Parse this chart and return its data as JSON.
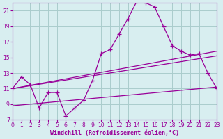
{
  "xlabel": "Windchill (Refroidissement éolien,°C)",
  "bg_color": "#d8eef0",
  "line_color": "#990099",
  "grid_color": "#aacccc",
  "xlim": [
    0,
    23
  ],
  "ylim": [
    7,
    22
  ],
  "xticks": [
    0,
    1,
    2,
    3,
    4,
    5,
    6,
    7,
    8,
    9,
    10,
    11,
    12,
    13,
    14,
    15,
    16,
    17,
    18,
    19,
    20,
    21,
    22,
    23
  ],
  "yticks": [
    7,
    9,
    11,
    13,
    15,
    17,
    19,
    21
  ],
  "main_x": [
    0,
    1,
    2,
    3,
    4,
    5,
    6,
    7,
    8,
    9,
    10,
    11,
    12,
    13,
    14,
    15,
    16,
    17,
    18,
    19,
    20,
    21,
    22,
    23
  ],
  "main_y": [
    11,
    12.5,
    11.5,
    8.5,
    10.5,
    10.5,
    7.5,
    8.5,
    9.5,
    12.0,
    15.5,
    16.0,
    18.0,
    20.0,
    22.2,
    22.0,
    21.5,
    19.0,
    16.5,
    15.8,
    15.3,
    15.5,
    13.0,
    11.0
  ],
  "trend1_y0": 11.0,
  "trend1_y1": 15.8,
  "trend2_y0": 11.0,
  "trend2_y1": 15.2,
  "trend3_y0": 8.8,
  "trend3_y1": 11.2,
  "tick_fontsize": 5.5,
  "xlabel_fontsize": 6.0
}
